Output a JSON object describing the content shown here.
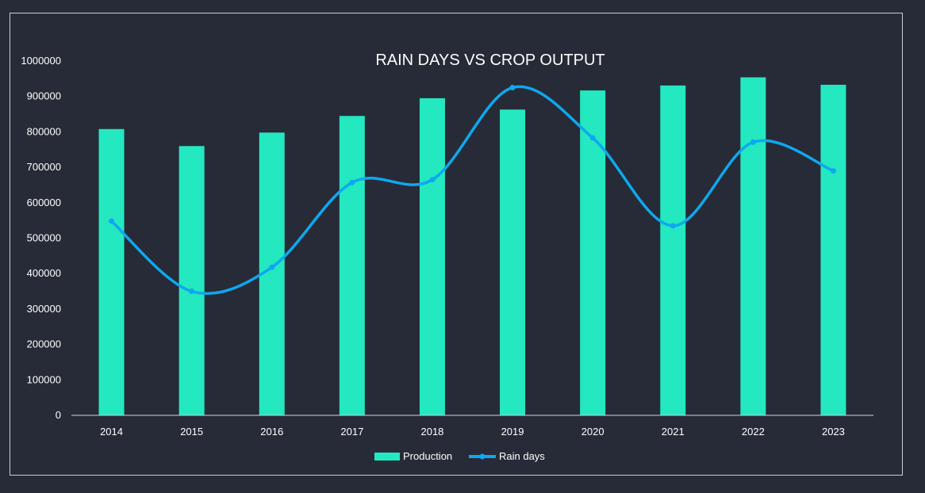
{
  "chart_data": {
    "type": "bar+line",
    "title": "RAIN DAYS VS CROP OUTPUT",
    "categories": [
      "2014",
      "2015",
      "2016",
      "2017",
      "2018",
      "2019",
      "2020",
      "2021",
      "2022",
      "2023"
    ],
    "series": [
      {
        "name": "Production",
        "type": "bar",
        "color": "#24e8c0",
        "values": [
          808000,
          760000,
          798000,
          845000,
          895000,
          863000,
          917000,
          931000,
          954000,
          933000
        ]
      },
      {
        "name": "Rain days",
        "type": "line",
        "smooth": true,
        "markers": true,
        "color": "#0ea8ef",
        "values": [
          548000,
          350000,
          418000,
          657000,
          665000,
          925000,
          783000,
          535000,
          771000,
          690000
        ]
      }
    ],
    "y_ticks": [
      "0",
      "100000",
      "200000",
      "300000",
      "400000",
      "500000",
      "600000",
      "700000",
      "800000",
      "900000",
      "1000000"
    ],
    "ylim": [
      0,
      1000000
    ],
    "grid": false,
    "legend_position": "bottom"
  }
}
